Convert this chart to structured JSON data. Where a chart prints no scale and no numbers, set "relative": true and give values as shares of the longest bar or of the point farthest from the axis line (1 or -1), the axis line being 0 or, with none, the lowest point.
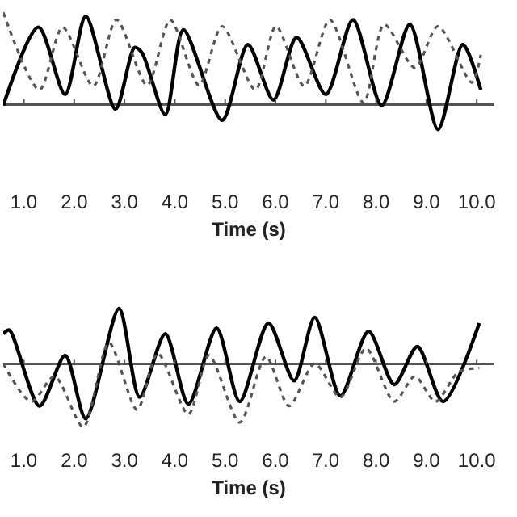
{
  "chart_data": [
    {
      "type": "line",
      "relative": true,
      "xlabel": "Time (s)",
      "xlim": [
        0.59,
        10.35
      ],
      "xticks": [
        {
          "value": 1,
          "label": "1.0"
        },
        {
          "value": 2,
          "label": "2.0"
        },
        {
          "value": 3,
          "label": "3.0"
        },
        {
          "value": 4,
          "label": "4.0"
        },
        {
          "value": 5,
          "label": "5.0"
        },
        {
          "value": 6,
          "label": "6.0"
        },
        {
          "value": 7,
          "label": "7.0"
        },
        {
          "value": 8,
          "label": "8.0"
        },
        {
          "value": 9,
          "label": "9.0"
        },
        {
          "value": 10,
          "label": "10.0"
        }
      ],
      "series": [
        {
          "color": "#000000",
          "line_style": "solid",
          "x": [
            0.59,
            1.29,
            1.82,
            2.23,
            2.82,
            3.2,
            3.35,
            3.81,
            4.17,
            4.94,
            5.45,
            5.96,
            6.42,
            7.0,
            7.54,
            8.11,
            8.67,
            9.23,
            9.72,
            10.08
          ],
          "values": [
            -0.01,
            0.84,
            0.11,
            0.96,
            -0.05,
            0.62,
            0.56,
            -0.11,
            0.81,
            -0.17,
            0.65,
            0.05,
            0.73,
            0.11,
            0.92,
            -0.01,
            0.87,
            -0.27,
            0.65,
            0.16
          ]
        },
        {
          "color": "#555555",
          "line_style": "dotted",
          "x": [
            0.59,
            1.31,
            1.77,
            2.38,
            2.84,
            3.45,
            3.91,
            4.48,
            4.94,
            5.6,
            6.01,
            6.57,
            7.08,
            7.75,
            8.16,
            8.77,
            9.23,
            9.9,
            10.08
          ],
          "values": [
            1.0,
            0.16,
            0.84,
            0.2,
            0.92,
            0.21,
            0.92,
            0.21,
            0.85,
            0.16,
            0.85,
            0.2,
            0.92,
            0.02,
            0.87,
            0.4,
            0.85,
            0.24,
            0.54
          ]
        }
      ]
    },
    {
      "type": "line",
      "relative": true,
      "xlabel": "Time (s)",
      "xlim": [
        0.59,
        10.35
      ],
      "xticks": [
        {
          "value": 1,
          "label": "1.0"
        },
        {
          "value": 2,
          "label": "2.0"
        },
        {
          "value": 3,
          "label": "3.0"
        },
        {
          "value": 4,
          "label": "4.0"
        },
        {
          "value": 5,
          "label": "5.0"
        },
        {
          "value": 6,
          "label": "6.0"
        },
        {
          "value": 7,
          "label": "7.0"
        },
        {
          "value": 8,
          "label": "8.0"
        },
        {
          "value": 9,
          "label": "9.0"
        },
        {
          "value": 10,
          "label": "10.0"
        }
      ],
      "series": [
        {
          "color": "#000000",
          "line_style": "solid",
          "x": [
            0.59,
            0.71,
            1.31,
            1.82,
            2.23,
            2.89,
            3.3,
            3.81,
            4.27,
            4.83,
            5.29,
            5.86,
            6.37,
            6.78,
            7.29,
            7.85,
            8.36,
            8.82,
            9.33,
            10.05
          ],
          "values": [
            0.47,
            0.53,
            -0.67,
            0.13,
            -0.87,
            0.87,
            -0.53,
            0.47,
            -0.64,
            0.56,
            -0.6,
            0.64,
            -0.27,
            0.73,
            -0.51,
            0.51,
            -0.33,
            0.27,
            -0.6,
            0.64
          ]
        },
        {
          "color": "#555555",
          "line_style": "dotted",
          "x": [
            0.59,
            1.15,
            1.61,
            2.18,
            2.69,
            3.25,
            3.66,
            4.27,
            4.68,
            5.29,
            5.81,
            6.27,
            6.78,
            7.29,
            7.8,
            8.36,
            8.77,
            9.18,
            9.64,
            10.05
          ],
          "values": [
            0,
            -0.6,
            -0.2,
            -1.0,
            0.33,
            -0.73,
            0.16,
            -0.8,
            0.13,
            -0.93,
            0.11,
            -0.67,
            0,
            -0.53,
            0.24,
            -0.6,
            -0.2,
            -0.6,
            -0.13,
            -0.07
          ]
        }
      ]
    }
  ]
}
